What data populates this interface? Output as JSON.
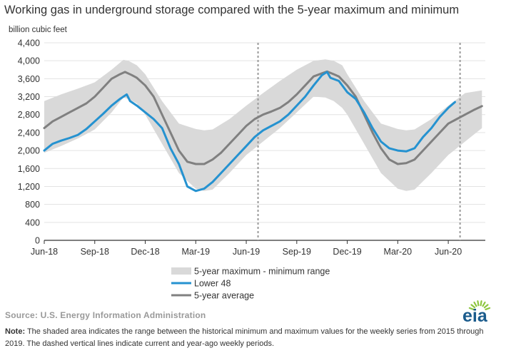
{
  "chart_data": {
    "type": "area",
    "title": "Working gas in underground storage compared with the 5-year maximum and minimum",
    "ylabel": "billion cubic feet",
    "ylim": [
      0,
      4400
    ],
    "yticks": [
      0,
      400,
      800,
      1200,
      1600,
      2000,
      2400,
      2800,
      3200,
      3600,
      4000,
      4400
    ],
    "ytick_labels": [
      "0",
      "400",
      "800",
      "1,200",
      "1,600",
      "2,000",
      "2,400",
      "2,800",
      "3,200",
      "3,600",
      "4,000",
      "4,400"
    ],
    "xlim": [
      0,
      25
    ],
    "xticks": [
      0,
      3,
      6,
      9,
      12,
      15,
      18,
      21,
      24
    ],
    "xtick_labels": [
      "Jun-18",
      "Sep-18",
      "Dec-18",
      "Mar-19",
      "Jun-19",
      "Sep-19",
      "Dec-19",
      "Mar-20",
      "Jun-20"
    ],
    "grid": "horizontal",
    "legend_position": "bottom-center",
    "reference_lines": [
      12.7,
      24.7
    ],
    "series": [
      {
        "name": "5-year maximum - minimum range",
        "kind": "band",
        "color": "#d9d9d9",
        "x": [
          0,
          1,
          2,
          3,
          4,
          4.7,
          5,
          5.5,
          6,
          7,
          8,
          9,
          9.5,
          10,
          11,
          12,
          13,
          14,
          15,
          16,
          16.7,
          17.2,
          17.7,
          18,
          19,
          20,
          21,
          21.5,
          22,
          23,
          24,
          25,
          26
        ],
        "upper": [
          3100,
          3250,
          3380,
          3520,
          3800,
          4020,
          4000,
          3900,
          3700,
          3100,
          2600,
          2480,
          2450,
          2470,
          2700,
          3000,
          3280,
          3550,
          3800,
          4000,
          4030,
          4000,
          3900,
          3700,
          3100,
          2600,
          2480,
          2450,
          2470,
          2700,
          3000,
          3280,
          3340
        ],
        "lower": [
          1950,
          2100,
          2270,
          2470,
          2850,
          3180,
          3150,
          3050,
          2800,
          2150,
          1500,
          1150,
          1100,
          1130,
          1500,
          1900,
          2200,
          2500,
          2850,
          3200,
          3180,
          3100,
          2950,
          2800,
          2150,
          1500,
          1150,
          1100,
          1130,
          1500,
          1900,
          2200,
          2500
        ]
      },
      {
        "name": "Lower 48",
        "kind": "line",
        "color": "#2592d0",
        "x": [
          0,
          0.5,
          1,
          1.5,
          2,
          2.5,
          3,
          3.5,
          4,
          4.5,
          4.9,
          5.1,
          5.5,
          6,
          6.5,
          7,
          7.5,
          8,
          8.5,
          9,
          9.5,
          10,
          10.5,
          11,
          11.5,
          12,
          12.5,
          13,
          13.5,
          14,
          14.5,
          15,
          15.5,
          16,
          16.5,
          16.8,
          17,
          17.5,
          18,
          18.5,
          19,
          19.5,
          20,
          20.5,
          21,
          21.5,
          22,
          22.5,
          23,
          23.5,
          24,
          24.4
        ],
        "values": [
          2000,
          2150,
          2220,
          2280,
          2350,
          2480,
          2650,
          2820,
          3000,
          3150,
          3250,
          3100,
          3000,
          2850,
          2700,
          2500,
          2050,
          1700,
          1200,
          1100,
          1150,
          1300,
          1500,
          1700,
          1900,
          2100,
          2300,
          2450,
          2550,
          2650,
          2800,
          3000,
          3200,
          3450,
          3680,
          3750,
          3620,
          3550,
          3300,
          3150,
          2850,
          2500,
          2200,
          2050,
          2000,
          1980,
          2050,
          2300,
          2500,
          2750,
          2950,
          3080
        ]
      },
      {
        "name": "5-year average",
        "kind": "line",
        "color": "#808080",
        "x": [
          0,
          0.5,
          1,
          1.5,
          2,
          2.5,
          3,
          3.5,
          4,
          4.5,
          4.8,
          5.2,
          5.5,
          6,
          6.5,
          7,
          7.5,
          8,
          8.5,
          9,
          9.5,
          10,
          10.5,
          11,
          11.5,
          12,
          12.5,
          13,
          13.5,
          14,
          14.5,
          15,
          15.5,
          16,
          16.5,
          16.8,
          17.2,
          17.5,
          18,
          18.5,
          19,
          19.5,
          20,
          20.5,
          21,
          21.5,
          22,
          22.5,
          23,
          23.5,
          24,
          24.5,
          25,
          25.5,
          26
        ],
        "values": [
          2500,
          2650,
          2750,
          2850,
          2950,
          3050,
          3200,
          3400,
          3600,
          3700,
          3750,
          3680,
          3620,
          3450,
          3200,
          2800,
          2400,
          2000,
          1750,
          1700,
          1700,
          1800,
          1950,
          2150,
          2350,
          2550,
          2700,
          2800,
          2870,
          2950,
          3080,
          3250,
          3450,
          3650,
          3720,
          3760,
          3700,
          3650,
          3450,
          3200,
          2800,
          2400,
          2050,
          1800,
          1700,
          1720,
          1800,
          2000,
          2200,
          2400,
          2600,
          2700,
          2800,
          2900,
          2990
        ]
      }
    ]
  },
  "source": "Source: U.S. Energy Information Administration",
  "note_label": "Note:",
  "note_text": " The shaded area indicates the range between the historical minimum and maximum values for the weekly series from 2015 through 2019. The dashed vertical lines indicate current and year-ago weekly periods.",
  "logo_text": "eia",
  "logo_colors": {
    "text": "#1a5b8c",
    "sun": "#8dc63f"
  }
}
